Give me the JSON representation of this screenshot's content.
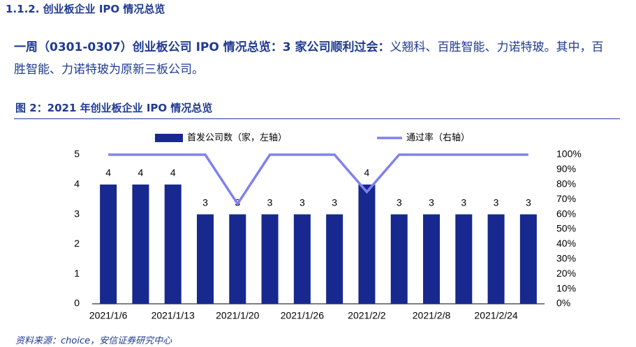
{
  "heading": "1.1.2. 创业板企业 IPO 情况总览",
  "paragraph": {
    "bold": "一周（0301-0307）创业板公司 IPO 情况总览：3 家公司顺利过会：",
    "text": "义翘科、百胜智能、力诺特玻。其中，百胜智能、力诺特玻为原新三板公司。"
  },
  "figure_title": "图 2：2021 年创业板企业 IPO 情况总览",
  "source": "资料来源：choice，安信证券研究中心",
  "chart_data": {
    "type": "bar",
    "categories": [
      "2021/1/6",
      null,
      "2021/1/13",
      null,
      "2021/1/20",
      null,
      "2021/1/26",
      null,
      "2021/2/2",
      null,
      "2021/2/8",
      null,
      "2021/2/24",
      null
    ],
    "series": [
      {
        "name": "首发公司数（家，左轴）",
        "type": "bar",
        "color": "#17288f",
        "values": [
          4,
          4,
          4,
          3,
          3,
          3,
          3,
          3,
          4,
          3,
          3,
          3,
          3,
          3
        ]
      },
      {
        "name": "通过率（右轴）",
        "type": "line",
        "axis": "y2",
        "color": "#8080f0",
        "values": [
          100,
          100,
          100,
          100,
          67,
          100,
          100,
          100,
          75,
          100,
          100,
          100,
          100,
          100
        ]
      }
    ],
    "ylim": [
      0,
      5
    ],
    "yticks": [
      0,
      1,
      2,
      3,
      4,
      5
    ],
    "y2lim": [
      0,
      100
    ],
    "y2ticks": [
      {
        "value": 0,
        "label": "0%"
      },
      {
        "value": 10,
        "label": "10%"
      },
      {
        "value": 20,
        "label": "20%"
      },
      {
        "value": 30,
        "label": "30%"
      },
      {
        "value": 40,
        "label": "40%"
      },
      {
        "value": 50,
        "label": "50%"
      },
      {
        "value": 60,
        "label": "60%"
      },
      {
        "value": 70,
        "label": "70%"
      },
      {
        "value": 80,
        "label": "80%"
      },
      {
        "value": 90,
        "label": "90%"
      },
      {
        "value": 100,
        "label": "100%"
      }
    ]
  }
}
